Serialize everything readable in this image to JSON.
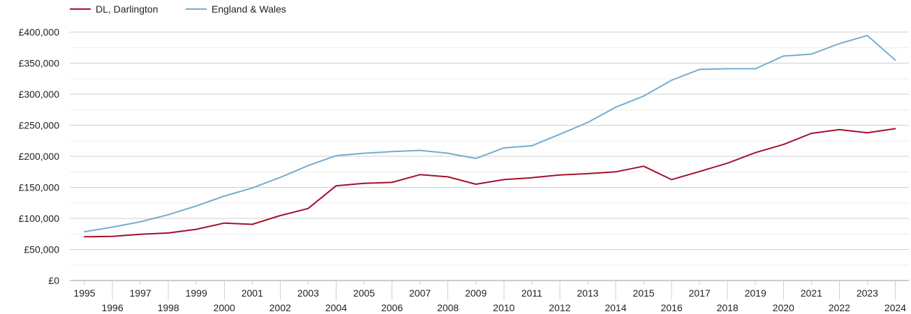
{
  "chart_data": {
    "type": "line",
    "title": "",
    "xlabel": "",
    "ylabel": "",
    "x": [
      1995,
      1996,
      1997,
      1998,
      1999,
      2000,
      2001,
      2002,
      2003,
      2004,
      2005,
      2006,
      2007,
      2008,
      2009,
      2010,
      2011,
      2012,
      2013,
      2014,
      2015,
      2016,
      2017,
      2018,
      2019,
      2020,
      2021,
      2022,
      2023,
      2024
    ],
    "x_tick_labels": [
      "1995",
      "1996",
      "1997",
      "1998",
      "1999",
      "2000",
      "2001",
      "2002",
      "2003",
      "2004",
      "2005",
      "2006",
      "2007",
      "2008",
      "2009",
      "2010",
      "2011",
      "2012",
      "2013",
      "2014",
      "2015",
      "2016",
      "2017",
      "2018",
      "2019",
      "2020",
      "2021",
      "2022",
      "2023",
      "2024"
    ],
    "ylim": [
      0,
      400000
    ],
    "y_ticks": [
      0,
      50000,
      100000,
      150000,
      200000,
      250000,
      300000,
      350000,
      400000
    ],
    "y_tick_labels": [
      "£0",
      "£50,000",
      "£100,000",
      "£150,000",
      "£200,000",
      "£250,000",
      "£300,000",
      "£350,000",
      "£400,000"
    ],
    "grid": true,
    "legend_position": "top-left",
    "series": [
      {
        "name": "DL, Darlington",
        "color": "#a50f2d",
        "values": [
          70500,
          71000,
          74500,
          76500,
          82500,
          92500,
          90500,
          104500,
          116000,
          152500,
          156500,
          158000,
          170500,
          167000,
          155000,
          162500,
          165500,
          170000,
          172000,
          175000,
          184000,
          162500,
          175500,
          189000,
          206000,
          219000,
          237000,
          243000,
          238000,
          244500
        ]
      },
      {
        "name": "England & Wales",
        "color": "#74acd1",
        "values": [
          78500,
          86000,
          94500,
          106000,
          120000,
          136000,
          149000,
          166000,
          185000,
          201000,
          205000,
          207500,
          209500,
          205000,
          196500,
          213500,
          217000,
          235500,
          254500,
          279000,
          297000,
          322500,
          340000,
          341000,
          341000,
          361500,
          364500,
          381500,
          394500,
          355000
        ]
      }
    ]
  }
}
